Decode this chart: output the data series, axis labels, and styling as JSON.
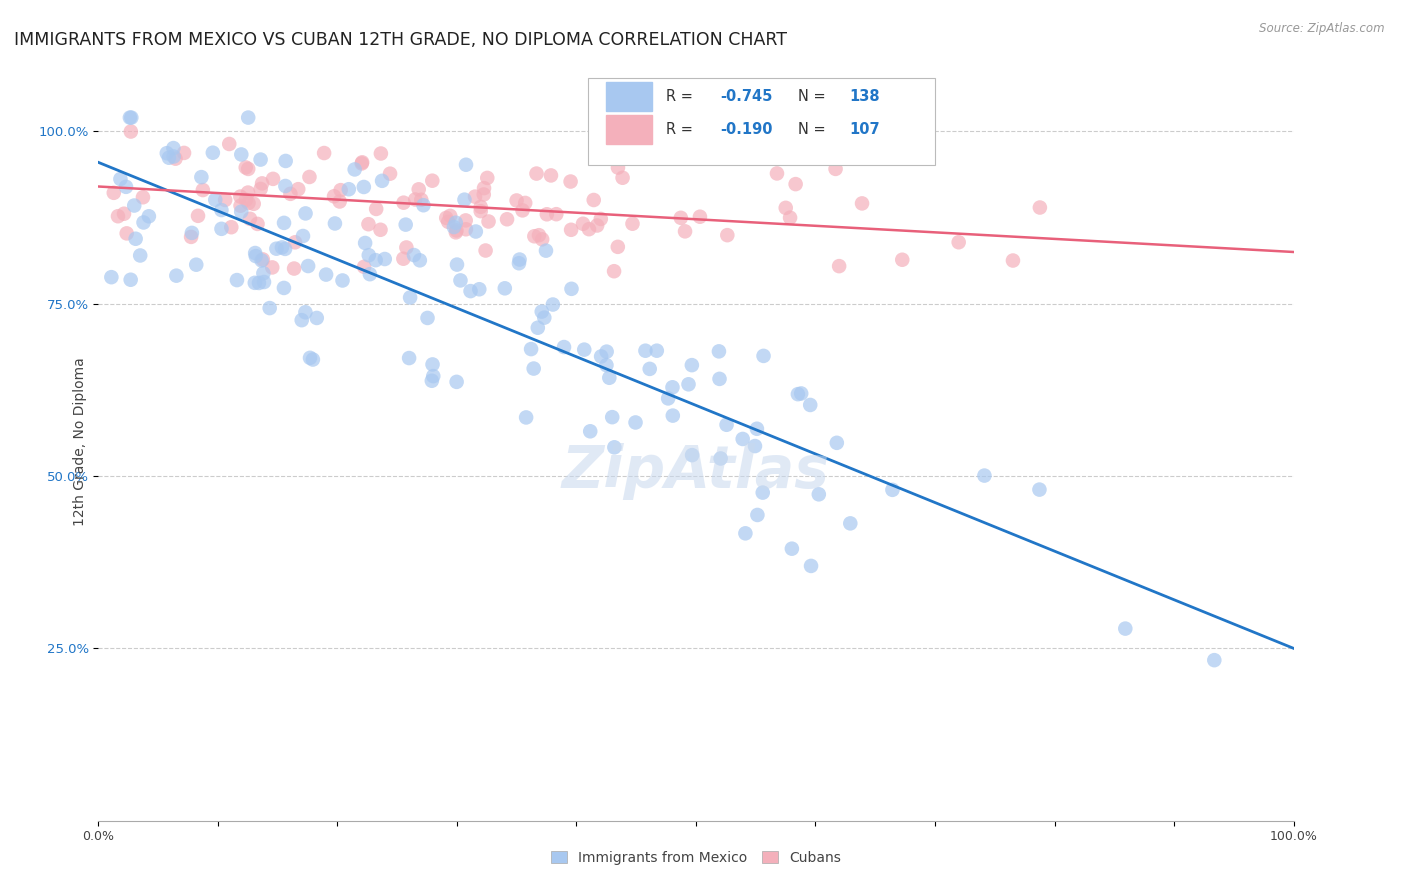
{
  "title": "IMMIGRANTS FROM MEXICO VS CUBAN 12TH GRADE, NO DIPLOMA CORRELATION CHART",
  "source_text": "Source: ZipAtlas.com",
  "ylabel": "12th Grade, No Diploma",
  "ytick_labels": [
    "100.0%",
    "75.0%",
    "50.0%",
    "25.0%"
  ],
  "ytick_positions": [
    1.0,
    0.75,
    0.5,
    0.25
  ],
  "legend_bottom": [
    "Immigrants from Mexico",
    "Cubans"
  ],
  "mexico_color": "#a8c8f0",
  "cuba_color": "#f4b0bb",
  "mexico_line_color": "#2176c7",
  "cuba_line_color": "#e8607a",
  "legend_R_N_color": "#2176c7",
  "watermark": "ZipAtlas",
  "background_color": "#ffffff",
  "grid_color": "#cccccc",
  "title_fontsize": 12.5,
  "axis_label_fontsize": 10,
  "tick_fontsize": 9,
  "R_mexico": -0.745,
  "R_cuba": -0.19,
  "N_mexico": 138,
  "N_cuba": 107,
  "mexico_intercept": 0.955,
  "mexico_slope": -0.705,
  "cuba_intercept": 0.92,
  "cuba_slope": -0.095,
  "xlim": [
    0.0,
    1.0
  ],
  "ylim": [
    0.0,
    1.1
  ]
}
